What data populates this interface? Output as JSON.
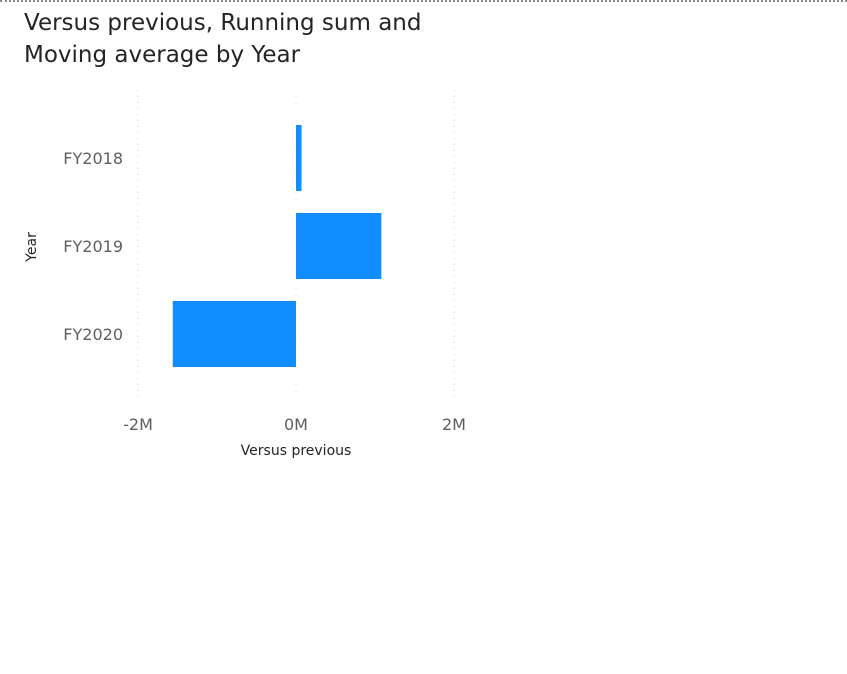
{
  "visual": {
    "title": "Versus previous, Running sum and Moving average by Year"
  },
  "chart_data": {
    "type": "bar",
    "orientation": "horizontal",
    "title": "Versus previous, Running sum and Moving average by Year",
    "categories": [
      "FY2018",
      "FY2019",
      "FY2020"
    ],
    "values": [
      70000,
      1080000,
      -1560000
    ],
    "xlabel": "Versus previous",
    "ylabel": "Year",
    "xlim": [
      -2000000,
      2000000
    ],
    "x_ticks": [
      {
        "value": -2000000,
        "label": "-2M"
      },
      {
        "value": 0,
        "label": "0M"
      },
      {
        "value": 2000000,
        "label": "2M"
      }
    ],
    "grid": true,
    "legend": "none",
    "bar_color": "#118DFF"
  }
}
